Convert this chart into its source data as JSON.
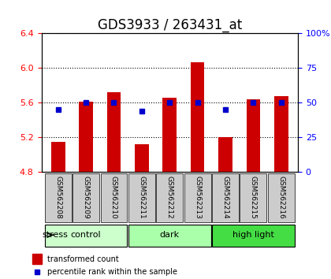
{
  "title": "GDS3933 / 263431_at",
  "samples": [
    "GSM562208",
    "GSM562209",
    "GSM562210",
    "GSM562211",
    "GSM562212",
    "GSM562213",
    "GSM562214",
    "GSM562215",
    "GSM562216"
  ],
  "bar_bottom": 4.8,
  "red_values": [
    5.15,
    5.61,
    5.72,
    5.12,
    5.66,
    6.07,
    5.2,
    5.64,
    5.68
  ],
  "blue_pct": [
    45,
    50,
    50,
    44,
    50,
    50,
    45,
    50,
    50
  ],
  "ylim_left": [
    4.8,
    6.4
  ],
  "ylim_right": [
    0,
    100
  ],
  "yticks_left": [
    4.8,
    5.2,
    5.6,
    6.0,
    6.4
  ],
  "yticks_right": [
    0,
    25,
    50,
    75,
    100
  ],
  "ytick_labels_right": [
    "0",
    "25",
    "50",
    "75",
    "100%"
  ],
  "groups": [
    {
      "label": "control",
      "indices": [
        0,
        1,
        2
      ],
      "color": "#ccffcc"
    },
    {
      "label": "dark",
      "indices": [
        3,
        4,
        5
      ],
      "color": "#aaffaa"
    },
    {
      "label": "high light",
      "indices": [
        6,
        7,
        8
      ],
      "color": "#44dd44"
    }
  ],
  "stress_label": "stress",
  "bar_color": "#cc0000",
  "dot_color": "#0000cc",
  "bar_width": 0.5,
  "grid_color": "#000000",
  "bg_color": "#ffffff",
  "plot_bg": "#ffffff",
  "tick_area_color": "#cccccc",
  "title_fontsize": 12,
  "tick_fontsize": 8,
  "label_fontsize": 8
}
